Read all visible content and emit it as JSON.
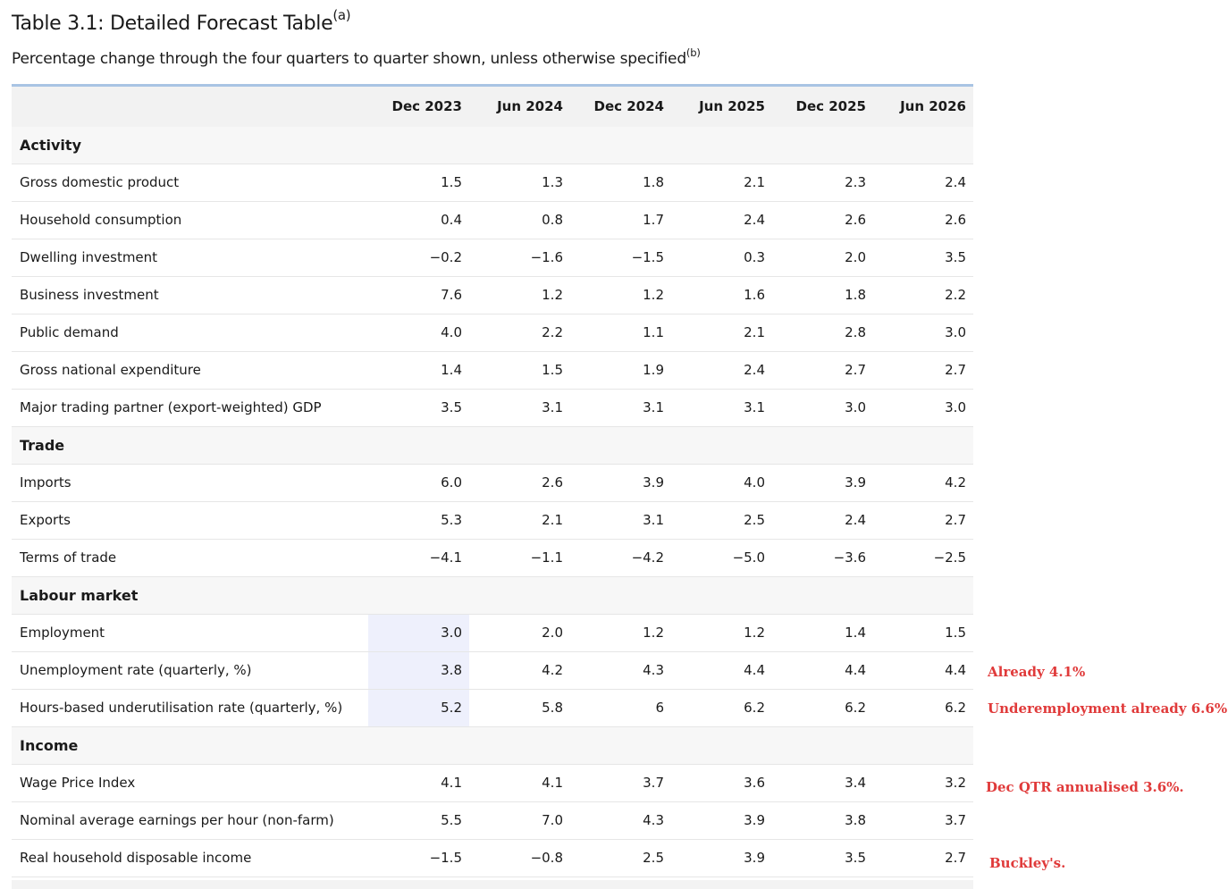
{
  "title": "Table 3.1: Detailed Forecast Table",
  "title_note": "(a)",
  "subtitle": "Percentage change through the four quarters to quarter shown, unless otherwise specified",
  "subtitle_note": "(b)",
  "columns": [
    "Dec 2023",
    "Jun 2024",
    "Dec 2024",
    "Jun 2025",
    "Dec 2025",
    "Jun 2026"
  ],
  "sections": [
    {
      "name": "Activity",
      "rows": [
        {
          "label": "Gross domestic product",
          "values": [
            "1.5",
            "1.3",
            "1.8",
            "2.1",
            "2.3",
            "2.4"
          ]
        },
        {
          "label": "Household consumption",
          "values": [
            "0.4",
            "0.8",
            "1.7",
            "2.4",
            "2.6",
            "2.6"
          ]
        },
        {
          "label": "Dwelling investment",
          "values": [
            "−0.2",
            "−1.6",
            "−1.5",
            "0.3",
            "2.0",
            "3.5"
          ]
        },
        {
          "label": "Business investment",
          "values": [
            "7.6",
            "1.2",
            "1.2",
            "1.6",
            "1.8",
            "2.2"
          ]
        },
        {
          "label": "Public demand",
          "values": [
            "4.0",
            "2.2",
            "1.1",
            "2.1",
            "2.8",
            "3.0"
          ]
        },
        {
          "label": "Gross national expenditure",
          "values": [
            "1.4",
            "1.5",
            "1.9",
            "2.4",
            "2.7",
            "2.7"
          ]
        },
        {
          "label": "Major trading partner (export-weighted) GDP",
          "values": [
            "3.5",
            "3.1",
            "3.1",
            "3.1",
            "3.0",
            "3.0"
          ]
        }
      ]
    },
    {
      "name": "Trade",
      "rows": [
        {
          "label": "Imports",
          "values": [
            "6.0",
            "2.6",
            "3.9",
            "4.0",
            "3.9",
            "4.2"
          ]
        },
        {
          "label": "Exports",
          "values": [
            "5.3",
            "2.1",
            "3.1",
            "2.5",
            "2.4",
            "2.7"
          ]
        },
        {
          "label": "Terms of trade",
          "values": [
            "−4.1",
            "−1.1",
            "−4.2",
            "−5.0",
            "−3.6",
            "−2.5"
          ]
        }
      ]
    },
    {
      "name": "Labour market",
      "rows": [
        {
          "label": "Employment",
          "values": [
            "3.0",
            "2.0",
            "1.2",
            "1.2",
            "1.4",
            "1.5"
          ]
        },
        {
          "label": "Unemployment rate (quarterly, %)",
          "values": [
            "3.8",
            "4.2",
            "4.3",
            "4.4",
            "4.4",
            "4.4"
          ]
        },
        {
          "label": "Hours-based underutilisation rate (quarterly, %)",
          "values": [
            "5.2",
            "5.8",
            "6",
            "6.2",
            "6.2",
            "6.2"
          ]
        }
      ]
    },
    {
      "name": "Income",
      "rows": [
        {
          "label": "Wage Price Index",
          "values": [
            "4.1",
            "4.1",
            "3.7",
            "3.6",
            "3.4",
            "3.2"
          ]
        },
        {
          "label": "Nominal average earnings per hour (non-farm)",
          "values": [
            "5.5",
            "7.0",
            "4.3",
            "3.9",
            "3.8",
            "3.7"
          ]
        },
        {
          "label": "Real household disposable income",
          "values": [
            "−1.5",
            "−0.8",
            "2.5",
            "3.9",
            "3.5",
            "2.7"
          ]
        }
      ]
    }
  ],
  "annotations": {
    "unemployment": "Already 4.1%",
    "underemployment": "Underemployment already 6.6%",
    "wage": "Dec QTR annualised 3.6%.",
    "real_income": "Buckley's."
  },
  "colors": {
    "annotation": "#e03a3a",
    "highlight": "#eef0fc",
    "header_rule": "#a9c4e4"
  }
}
